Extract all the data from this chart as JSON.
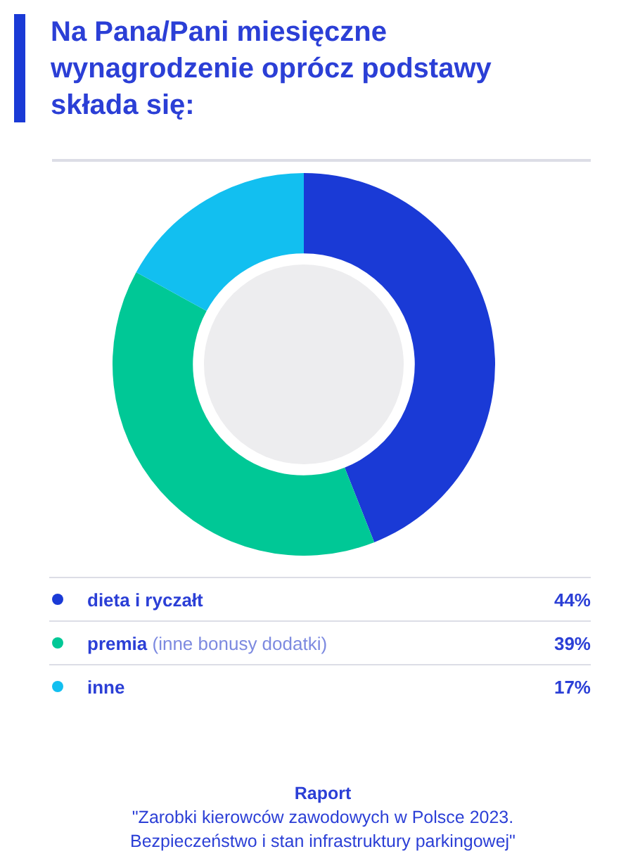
{
  "chart_data": {
    "type": "donut",
    "title": "Na Pana/Pani miesięczne wynagrodzenie oprócz podstawy składa się:",
    "categories": [
      "dieta i ryczałt",
      "premia (inne bonusy dodatki)",
      "inne"
    ],
    "values": [
      44,
      39,
      17
    ],
    "colors": [
      "#1a3ad6",
      "#00c896",
      "#12bff0"
    ],
    "legend": "bottom",
    "value_labels": [
      "44%",
      "39%",
      "17%"
    ],
    "annotations": [
      "Raport",
      "\"Zarobki kierowców zawodowych w Polsce 2023. Bezpieczeństwo i stan infrastruktury parkingowej\""
    ]
  }
}
